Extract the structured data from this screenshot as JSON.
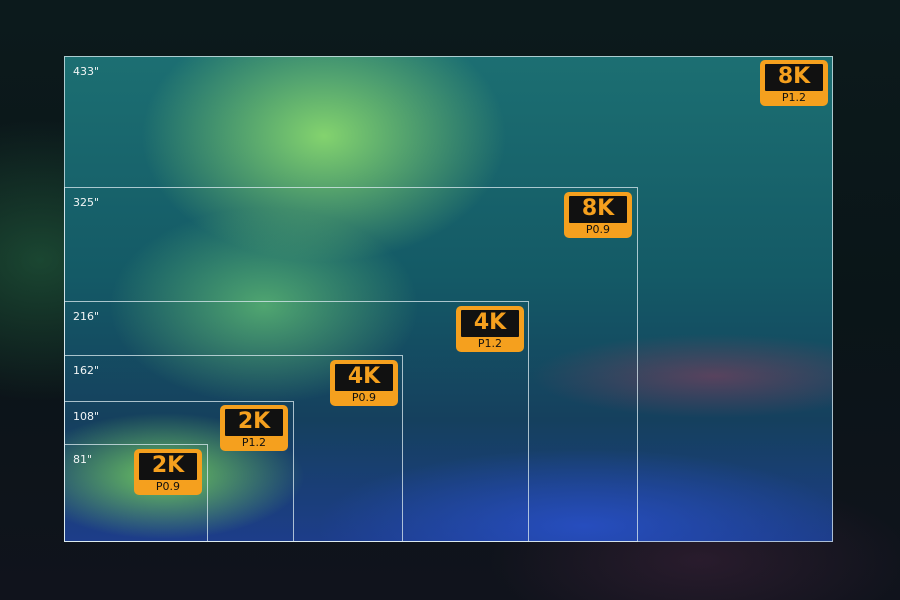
{
  "screens": [
    {
      "size": "433\"",
      "resolution": "8K",
      "pitch": "P1.2"
    },
    {
      "size": "325\"",
      "resolution": "8K",
      "pitch": "P0.9"
    },
    {
      "size": "216\"",
      "resolution": "4K",
      "pitch": "P1.2"
    },
    {
      "size": "162\"",
      "resolution": "4K",
      "pitch": "P0.9"
    },
    {
      "size": "108\"",
      "resolution": "2K",
      "pitch": "P1.2"
    },
    {
      "size": "81\"",
      "resolution": "2K",
      "pitch": "P0.9"
    }
  ],
  "colors": {
    "badge": "#f5a01e",
    "badge_inner": "#111111",
    "outline": "#dcebf0"
  }
}
